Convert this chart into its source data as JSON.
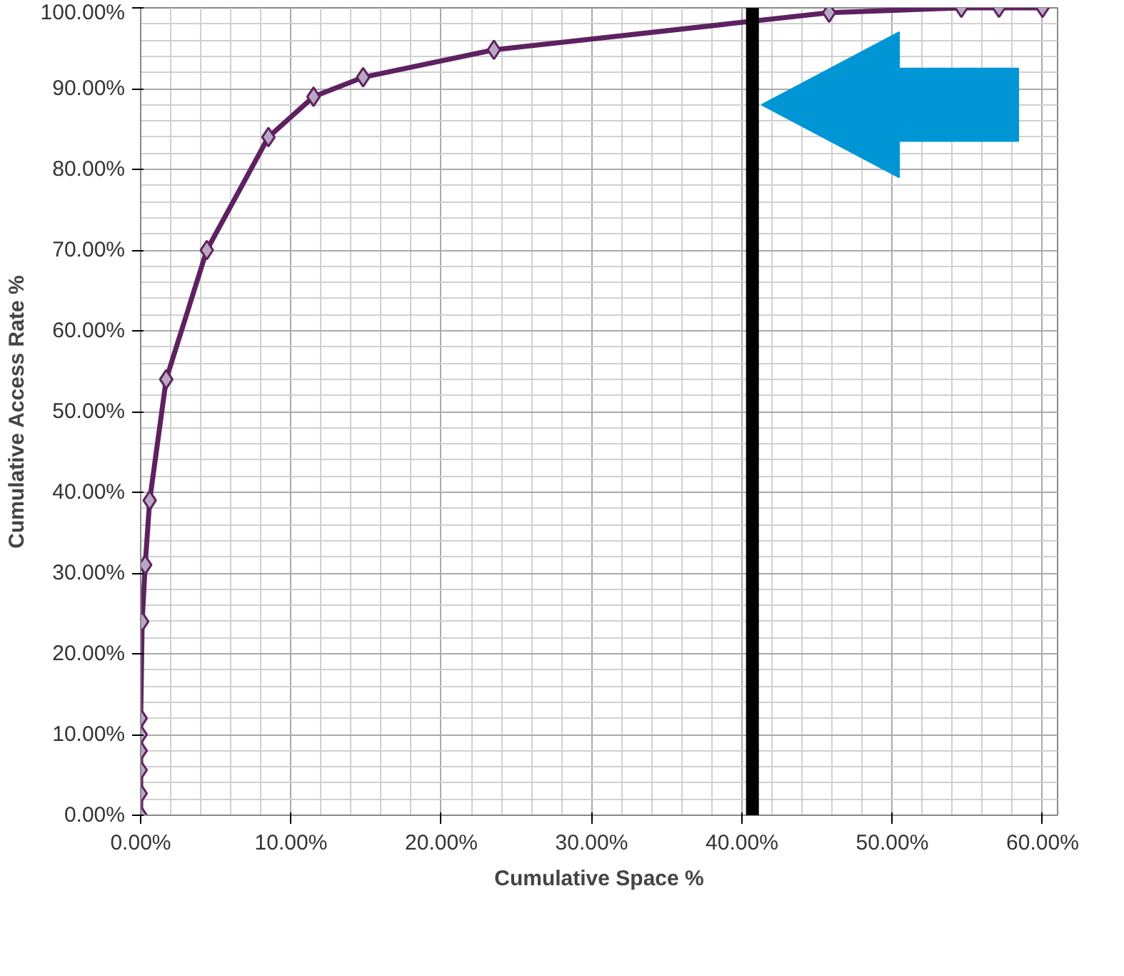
{
  "chart_data": {
    "type": "line",
    "xlabel": "Cumulative Space %",
    "ylabel": "Cumulative Access Rate %",
    "x": [
      0,
      0,
      0,
      0,
      0,
      0,
      0.1,
      0.3,
      0.6,
      1.7,
      4.4,
      8.5,
      11.5,
      14.8,
      23.5,
      45.8,
      54.6,
      57.1,
      60
    ],
    "series": [
      {
        "color": "#5e2160",
        "values": [
          0,
          2.7,
          5.6,
          8,
          10,
          12,
          24,
          31,
          39,
          54,
          70,
          84,
          89,
          91.4,
          94.8,
          99.4,
          100,
          100,
          100
        ]
      }
    ],
    "marker": "diamond",
    "line_style": "solid",
    "grid": true,
    "xlim": [
      0,
      61
    ],
    "ylim": [
      0,
      100
    ],
    "xticks": [
      {
        "value": 0,
        "label": "0.00%"
      },
      {
        "value": 10,
        "label": "10.00%"
      },
      {
        "value": 20,
        "label": "20.00%"
      },
      {
        "value": 30,
        "label": "30.00%"
      },
      {
        "value": 40,
        "label": "40.00%"
      },
      {
        "value": 50,
        "label": "50.00%"
      },
      {
        "value": 60,
        "label": "60.00%"
      }
    ],
    "yticks": [
      {
        "value": 0,
        "label": "0.00%"
      },
      {
        "value": 10,
        "label": "10.00%"
      },
      {
        "value": 20,
        "label": "20.00%"
      },
      {
        "value": 30,
        "label": "30.00%"
      },
      {
        "value": 40,
        "label": "40.00%"
      },
      {
        "value": 50,
        "label": "50.00%"
      },
      {
        "value": 60,
        "label": "60.00%"
      },
      {
        "value": 70,
        "label": "70.00%"
      },
      {
        "value": 80,
        "label": "80.00%"
      },
      {
        "value": 90,
        "label": "90.00%"
      },
      {
        "value": 100,
        "label": "100.00%"
      }
    ],
    "ref_lines": [
      {
        "axis": "x",
        "value": 40.7,
        "color": "#000000",
        "line_style": "solid"
      }
    ]
  }
}
